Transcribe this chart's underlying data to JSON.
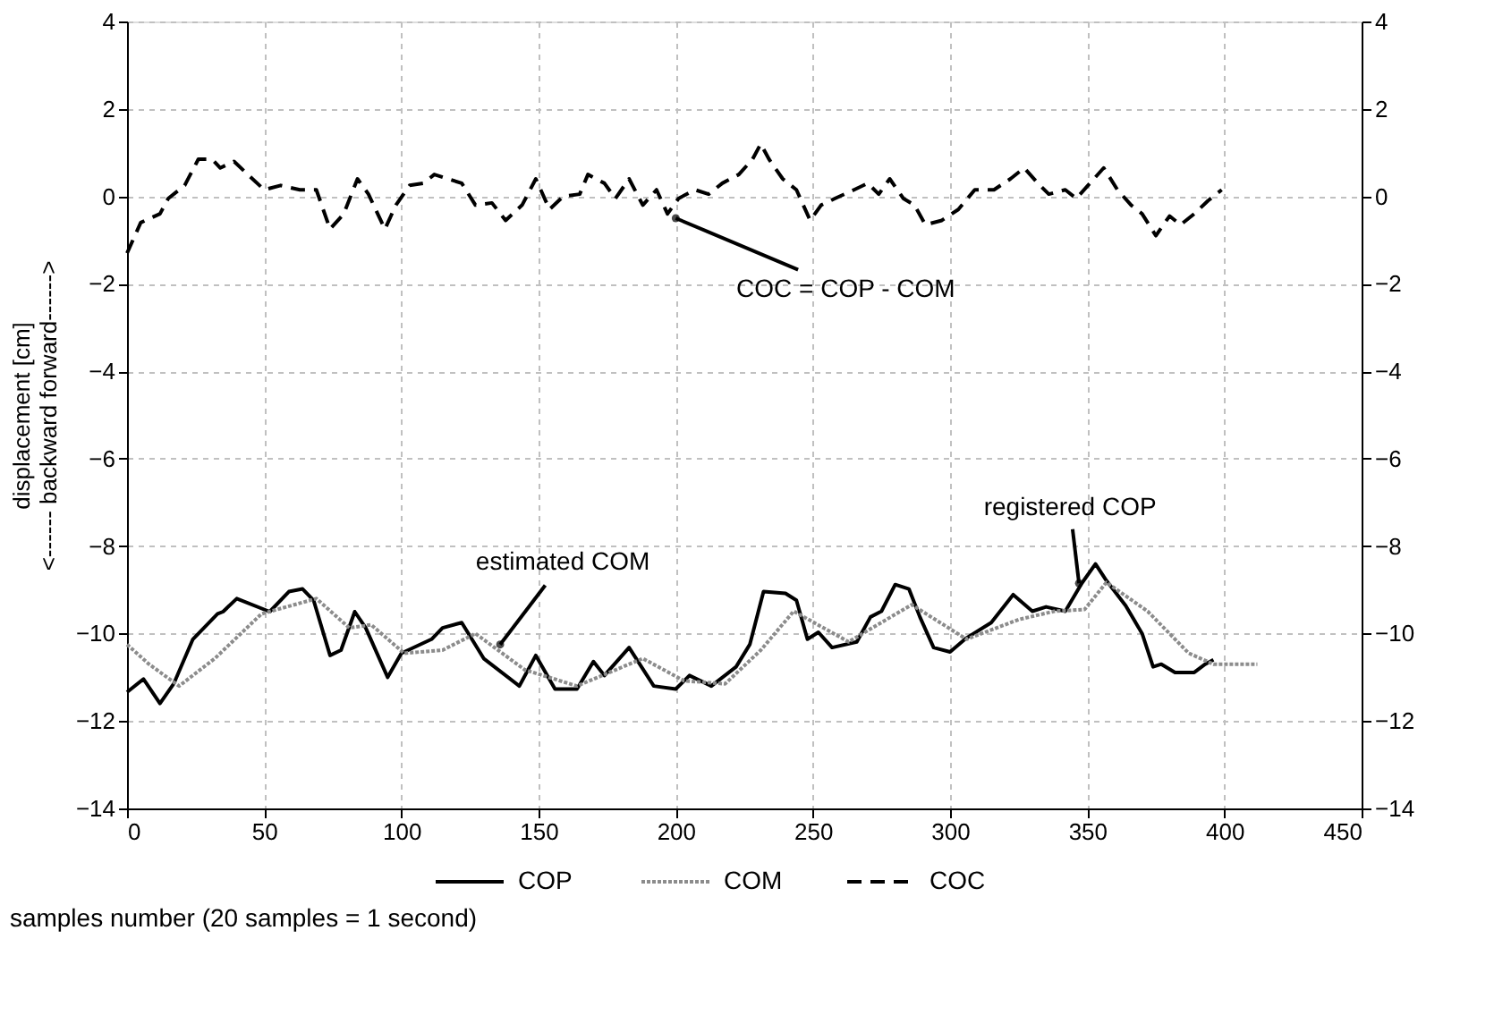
{
  "chart_data": {
    "type": "line",
    "xlabel": "samples number (20 samples = 1 second)",
    "ylabel": "displacement [cm]\n<------ backward       forward------>",
    "xlim": [
      0,
      450
    ],
    "xticks": [
      0,
      50,
      100,
      150,
      200,
      250,
      300,
      350,
      400,
      450
    ],
    "ylim": [
      -14,
      4
    ],
    "yticks": [
      -14,
      -12,
      -10,
      -8,
      -6,
      -4,
      -2,
      0,
      2,
      4
    ],
    "y2lim": [
      -14,
      4
    ],
    "y2ticks": [
      -14,
      -12,
      -10,
      -8,
      -6,
      -4,
      -2,
      0,
      2,
      4
    ],
    "grid": true,
    "legend": "bottom",
    "series": [
      {
        "name": "COP",
        "color": "#000000",
        "line_style": "solid",
        "x": [
          0,
          6,
          12,
          17,
          24,
          33,
          35,
          40,
          52,
          59,
          64,
          68,
          74,
          78,
          83,
          87,
          95,
          100,
          111,
          115,
          122,
          130,
          143,
          149,
          156,
          164,
          170,
          174,
          183,
          192,
          200,
          205,
          213,
          222,
          227,
          232,
          240,
          244,
          248,
          252,
          257,
          266,
          271,
          275,
          280,
          285,
          289,
          294,
          300,
          306,
          315,
          323,
          330,
          335,
          342,
          348,
          353,
          357,
          364,
          370,
          374,
          377,
          382,
          389,
          393,
          396
        ],
        "values": [
          -11.34,
          -11.04,
          -11.6,
          -11.15,
          -10.13,
          -9.55,
          -9.5,
          -9.2,
          -9.5,
          -9.04,
          -8.98,
          -9.24,
          -10.5,
          -10.38,
          -9.5,
          -9.87,
          -11.0,
          -10.45,
          -10.13,
          -9.87,
          -9.75,
          -10.57,
          -11.2,
          -10.5,
          -11.27,
          -11.27,
          -10.64,
          -10.96,
          -10.32,
          -11.2,
          -11.27,
          -10.96,
          -11.2,
          -10.76,
          -10.25,
          -9.04,
          -9.08,
          -9.24,
          -10.13,
          -9.97,
          -10.32,
          -10.19,
          -9.62,
          -9.49,
          -8.88,
          -8.98,
          -9.62,
          -10.32,
          -10.42,
          -10.1,
          -9.75,
          -9.11,
          -9.49,
          -9.39,
          -9.49,
          -8.85,
          -8.41,
          -8.79,
          -9.36,
          -10.0,
          -10.76,
          -10.7,
          -10.89,
          -10.89,
          -10.7,
          -10.6
        ]
      },
      {
        "name": "COM",
        "color": "#8c8c8c",
        "line_style": "dotted",
        "x": [
          0,
          8,
          19,
          32,
          49,
          69,
          81,
          89,
          101,
          115,
          127,
          145,
          164,
          188,
          203,
          218,
          231,
          243,
          263,
          286,
          306,
          325,
          338,
          349,
          357,
          372,
          387,
          396,
          412
        ],
        "values": [
          -10.25,
          -10.7,
          -11.2,
          -10.57,
          -9.55,
          -9.2,
          -9.87,
          -9.8,
          -10.45,
          -10.38,
          -10.0,
          -10.83,
          -11.2,
          -10.57,
          -11.08,
          -11.15,
          -10.38,
          -9.49,
          -10.19,
          -9.34,
          -10.13,
          -9.68,
          -9.49,
          -9.45,
          -8.83,
          -9.49,
          -10.45,
          -10.7,
          -10.7
        ]
      },
      {
        "name": "COC",
        "color": "#000000",
        "line_style": "dashed",
        "x": [
          0,
          5,
          12,
          15,
          21,
          26,
          31,
          34,
          39,
          44,
          50,
          56,
          63,
          69,
          74,
          79,
          84,
          88,
          94,
          98,
          103,
          108,
          112,
          117,
          122,
          127,
          133,
          138,
          144,
          149,
          154,
          159,
          165,
          168,
          174,
          178,
          183,
          188,
          193,
          197,
          201,
          207,
          212,
          217,
          223,
          228,
          231,
          234,
          239,
          244,
          249,
          253,
          258,
          265,
          270,
          274,
          278,
          283,
          287,
          291,
          297,
          303,
          309,
          316,
          322,
          327,
          332,
          336,
          342,
          346,
          351,
          356,
          361,
          366,
          370,
          375,
          380,
          384,
          389,
          394,
          399
        ],
        "values": [
          -1.3,
          -0.6,
          -0.4,
          -0.05,
          0.25,
          0.85,
          0.85,
          0.65,
          0.8,
          0.5,
          0.15,
          0.25,
          0.15,
          0.15,
          -0.75,
          -0.4,
          0.4,
          0.05,
          -0.75,
          -0.2,
          0.25,
          0.3,
          0.5,
          0.4,
          0.3,
          -0.2,
          -0.15,
          -0.55,
          -0.2,
          0.4,
          -0.3,
          0.0,
          0.05,
          0.5,
          0.3,
          -0.05,
          0.4,
          -0.2,
          0.15,
          -0.4,
          -0.05,
          0.15,
          0.05,
          0.3,
          0.5,
          0.85,
          1.2,
          0.85,
          0.4,
          0.15,
          -0.55,
          -0.2,
          -0.05,
          0.15,
          0.3,
          0.05,
          0.4,
          -0.05,
          -0.2,
          -0.65,
          -0.55,
          -0.3,
          0.15,
          0.15,
          0.4,
          0.65,
          0.3,
          0.05,
          0.15,
          -0.05,
          0.3,
          0.65,
          0.15,
          -0.2,
          -0.4,
          -0.9,
          -0.45,
          -0.65,
          -0.4,
          -0.1,
          0.15
        ]
      }
    ],
    "annotations": [
      {
        "text": "COC = COP - COM",
        "x": 200,
        "y": -0.5
      },
      {
        "text": "estimated COM",
        "x": 136,
        "y": -10.25
      },
      {
        "text": "registered COP",
        "x": 347,
        "y": -8.85
      }
    ]
  }
}
